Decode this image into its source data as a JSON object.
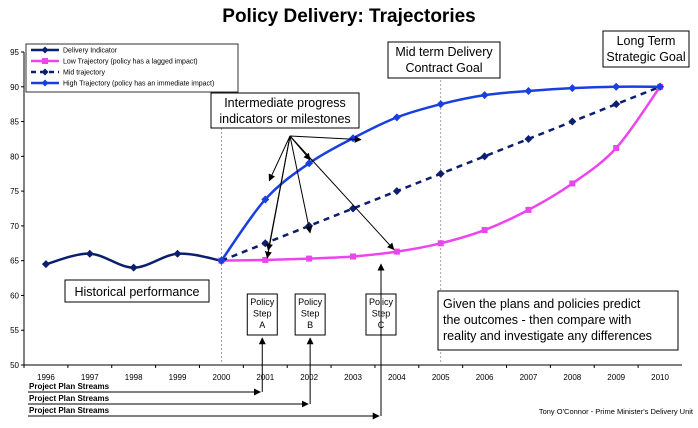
{
  "chart_data": {
    "type": "line",
    "title": "Policy Delivery:  Trajectories",
    "xlabel": "",
    "ylabel": "",
    "categories": [
      "1996",
      "1997",
      "1998",
      "1999",
      "2000",
      "2001",
      "2002",
      "2003",
      "2004",
      "2005",
      "2006",
      "2007",
      "2008",
      "2009",
      "2010"
    ],
    "ylim": [
      50,
      95
    ],
    "yticks": [
      50,
      55,
      60,
      65,
      70,
      75,
      80,
      85,
      90,
      95
    ],
    "grid": false,
    "legend_position": "top-left",
    "series": [
      {
        "name": "Delivery Indicator",
        "color": "#0b1f6e",
        "style": "solid",
        "marker": "diamond",
        "x": [
          "1996",
          "1997",
          "1998",
          "1999",
          "2000"
        ],
        "values": [
          64.5,
          66,
          64,
          66,
          65
        ]
      },
      {
        "name": "Low Trajectory (policy has a lagged impact)",
        "color": "#ee44ee",
        "style": "solid",
        "marker": "square",
        "x": [
          "2000",
          "2001",
          "2002",
          "2003",
          "2004",
          "2005",
          "2006",
          "2007",
          "2008",
          "2009",
          "2010"
        ],
        "values": [
          65,
          65.1,
          65.3,
          65.6,
          66.3,
          67.5,
          69.4,
          72.3,
          76.1,
          81.2,
          90
        ]
      },
      {
        "name": "Mid trajectory",
        "color": "#0b1f6e",
        "style": "dashed",
        "marker": "diamond",
        "x": [
          "2000",
          "2001",
          "2002",
          "2003",
          "2004",
          "2005",
          "2006",
          "2007",
          "2008",
          "2009",
          "2010"
        ],
        "values": [
          65,
          67.5,
          70,
          72.5,
          75,
          77.5,
          80,
          82.5,
          85,
          87.5,
          90
        ]
      },
      {
        "name": "High Trajectory (policy has an immediate impact)",
        "color": "#1a3fe0",
        "style": "solid",
        "marker": "diamond",
        "x": [
          "2000",
          "2001",
          "2002",
          "2003",
          "2004",
          "2005",
          "2006",
          "2007",
          "2008",
          "2009",
          "2010"
        ],
        "values": [
          65,
          73.8,
          79,
          82.6,
          85.6,
          87.5,
          88.8,
          89.4,
          89.8,
          90,
          90
        ]
      }
    ],
    "annotations": {
      "milestones": "Intermediate progress indicators or milestones",
      "mid_goal": [
        "Mid term Delivery",
        "Contract Goal"
      ],
      "long_goal": [
        "Long Term",
        "Strategic Goal"
      ],
      "historical": "Historical performance",
      "given_text": [
        "Given the plans and policies predict",
        "the outcomes - then compare with",
        "reality and investigate any differences"
      ],
      "policy_steps": [
        {
          "lines": [
            "Policy",
            "Step",
            "A"
          ]
        },
        {
          "lines": [
            "Policy",
            "Step",
            "B"
          ]
        },
        {
          "lines": [
            "Policy",
            "Step",
            "C"
          ]
        }
      ],
      "streams": [
        "Project Plan Streams",
        "Project Plan Streams",
        "Project Plan Streams"
      ],
      "credit": "Tony O'Connor - Prime Minister's Delivery Unit"
    }
  }
}
